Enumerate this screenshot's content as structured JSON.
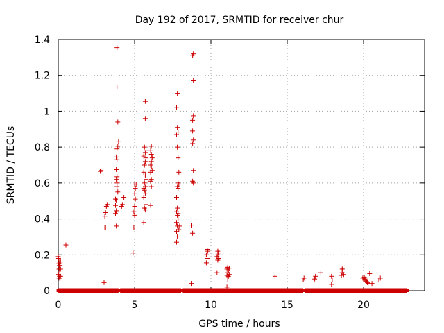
{
  "chart_data": {
    "type": "scatter",
    "title": "Day 192 of 2017, SRMTID for receiver chur",
    "xlabel": "GPS time / hours",
    "ylabel": "SRMTID / TECUs",
    "xlim": [
      0,
      24
    ],
    "ylim": [
      0,
      1.4
    ],
    "xticks": [
      0,
      5,
      10,
      15,
      20
    ],
    "xtick_labels": [
      "0",
      "5",
      "10",
      "15",
      "20"
    ],
    "yticks": [
      0,
      0.2,
      0.4,
      0.6,
      0.8,
      1.0,
      1.2,
      1.4
    ],
    "ytick_labels": [
      "0",
      "0.2",
      "0.4",
      "0.6",
      "0.8",
      "1",
      "1.2",
      "1.4"
    ],
    "grid": true,
    "marker": "+",
    "color": "#cc0000",
    "series": [
      {
        "name": "SRMTID",
        "points": [
          [
            0.0,
            0.19
          ],
          [
            0.02,
            0.18
          ],
          [
            0.05,
            0.16
          ],
          [
            0.03,
            0.15
          ],
          [
            0.07,
            0.14
          ],
          [
            0.1,
            0.15
          ],
          [
            0.12,
            0.14
          ],
          [
            0.15,
            0.16
          ],
          [
            0.05,
            0.12
          ],
          [
            0.1,
            0.11
          ],
          [
            0.15,
            0.12
          ],
          [
            0.02,
            0.09
          ],
          [
            0.08,
            0.08
          ],
          [
            0.12,
            0.07
          ],
          [
            0.05,
            0.07
          ],
          [
            0.15,
            0.08
          ],
          [
            0.5,
            0.255
          ],
          [
            2.75,
            0.665
          ],
          [
            2.8,
            0.67
          ],
          [
            3.0,
            0.045
          ],
          [
            3.05,
            0.35
          ],
          [
            3.1,
            0.35
          ],
          [
            3.05,
            0.415
          ],
          [
            3.1,
            0.435
          ],
          [
            3.15,
            0.47
          ],
          [
            3.2,
            0.48
          ],
          [
            3.75,
            0.475
          ],
          [
            3.8,
            0.445
          ],
          [
            3.75,
            0.43
          ],
          [
            3.8,
            0.36
          ],
          [
            3.75,
            0.51
          ],
          [
            3.8,
            0.505
          ],
          [
            3.85,
            0.6
          ],
          [
            3.8,
            0.62
          ],
          [
            3.85,
            0.635
          ],
          [
            3.8,
            0.675
          ],
          [
            3.85,
            0.73
          ],
          [
            3.8,
            0.745
          ],
          [
            3.85,
            0.79
          ],
          [
            3.9,
            0.805
          ],
          [
            3.95,
            0.83
          ],
          [
            3.9,
            0.94
          ],
          [
            3.85,
            1.135
          ],
          [
            3.85,
            1.355
          ],
          [
            3.85,
            0.58
          ],
          [
            3.9,
            0.55
          ],
          [
            4.15,
            0.47
          ],
          [
            4.2,
            0.48
          ],
          [
            4.3,
            0.52
          ],
          [
            4.9,
            0.21
          ],
          [
            4.95,
            0.35
          ],
          [
            5.0,
            0.42
          ],
          [
            4.95,
            0.44
          ],
          [
            5.0,
            0.47
          ],
          [
            5.05,
            0.51
          ],
          [
            5.0,
            0.54
          ],
          [
            5.05,
            0.57
          ],
          [
            5.0,
            0.59
          ],
          [
            5.1,
            0.59
          ],
          [
            5.6,
            0.38
          ],
          [
            5.65,
            0.46
          ],
          [
            5.7,
            0.45
          ],
          [
            5.75,
            0.48
          ],
          [
            5.6,
            0.52
          ],
          [
            5.7,
            0.54
          ],
          [
            5.65,
            0.56
          ],
          [
            5.6,
            0.57
          ],
          [
            5.7,
            0.58
          ],
          [
            5.65,
            0.6
          ],
          [
            5.75,
            0.62
          ],
          [
            5.7,
            0.64
          ],
          [
            5.6,
            0.66
          ],
          [
            5.65,
            0.7
          ],
          [
            5.7,
            0.72
          ],
          [
            5.75,
            0.74
          ],
          [
            5.6,
            0.75
          ],
          [
            5.7,
            0.77
          ],
          [
            5.75,
            0.78
          ],
          [
            5.65,
            0.8
          ],
          [
            5.7,
            0.96
          ],
          [
            5.7,
            1.055
          ],
          [
            6.05,
            0.475
          ],
          [
            6.1,
            0.58
          ],
          [
            6.05,
            0.61
          ],
          [
            6.1,
            0.62
          ],
          [
            6.05,
            0.66
          ],
          [
            6.15,
            0.67
          ],
          [
            6.1,
            0.69
          ],
          [
            6.05,
            0.7
          ],
          [
            6.1,
            0.72
          ],
          [
            6.15,
            0.74
          ],
          [
            6.1,
            0.76
          ],
          [
            6.05,
            0.78
          ],
          [
            6.1,
            0.805
          ],
          [
            7.75,
            0.27
          ],
          [
            7.8,
            0.3
          ],
          [
            7.75,
            0.33
          ],
          [
            7.85,
            0.35
          ],
          [
            7.8,
            0.36
          ],
          [
            7.75,
            0.38
          ],
          [
            7.85,
            0.4
          ],
          [
            7.8,
            0.42
          ],
          [
            7.75,
            0.44
          ],
          [
            7.85,
            0.43
          ],
          [
            7.8,
            0.46
          ],
          [
            7.75,
            0.52
          ],
          [
            7.85,
            0.57
          ],
          [
            7.8,
            0.58
          ],
          [
            7.9,
            0.59
          ],
          [
            7.85,
            0.6
          ],
          [
            7.9,
            0.66
          ],
          [
            7.85,
            0.74
          ],
          [
            7.8,
            0.8
          ],
          [
            7.75,
            0.87
          ],
          [
            7.8,
            0.91
          ],
          [
            7.85,
            0.88
          ],
          [
            7.75,
            1.02
          ],
          [
            7.8,
            1.1
          ],
          [
            7.95,
            0.36
          ],
          [
            7.9,
            0.34
          ],
          [
            8.75,
            0.04
          ],
          [
            8.8,
            0.32
          ],
          [
            8.75,
            0.365
          ],
          [
            8.85,
            0.6
          ],
          [
            8.8,
            0.61
          ],
          [
            8.85,
            0.67
          ],
          [
            8.8,
            0.82
          ],
          [
            8.85,
            0.84
          ],
          [
            8.8,
            0.89
          ],
          [
            8.8,
            0.95
          ],
          [
            8.85,
            0.975
          ],
          [
            8.85,
            1.17
          ],
          [
            8.8,
            1.31
          ],
          [
            8.85,
            1.32
          ],
          [
            9.7,
            0.155
          ],
          [
            9.75,
            0.18
          ],
          [
            9.7,
            0.2
          ],
          [
            9.8,
            0.22
          ],
          [
            9.75,
            0.23
          ],
          [
            10.4,
            0.1
          ],
          [
            10.45,
            0.17
          ],
          [
            10.5,
            0.18
          ],
          [
            10.4,
            0.19
          ],
          [
            10.45,
            0.2
          ],
          [
            10.5,
            0.21
          ],
          [
            10.45,
            0.22
          ],
          [
            11.05,
            0.02
          ],
          [
            11.1,
            0.06
          ],
          [
            11.15,
            0.08
          ],
          [
            11.05,
            0.085
          ],
          [
            11.2,
            0.09
          ],
          [
            11.1,
            0.1
          ],
          [
            11.15,
            0.11
          ],
          [
            11.05,
            0.12
          ],
          [
            11.2,
            0.125
          ],
          [
            11.1,
            0.13
          ],
          [
            14.2,
            0.08
          ],
          [
            16.05,
            0.06
          ],
          [
            16.1,
            0.07
          ],
          [
            16.8,
            0.065
          ],
          [
            16.85,
            0.08
          ],
          [
            17.2,
            0.1
          ],
          [
            17.9,
            0.035
          ],
          [
            17.95,
            0.06
          ],
          [
            17.9,
            0.08
          ],
          [
            18.55,
            0.085
          ],
          [
            18.6,
            0.1
          ],
          [
            18.65,
            0.11
          ],
          [
            18.6,
            0.12
          ],
          [
            18.65,
            0.125
          ],
          [
            18.7,
            0.09
          ],
          [
            19.95,
            0.07
          ],
          [
            20.0,
            0.06
          ],
          [
            20.1,
            0.065
          ],
          [
            20.15,
            0.055
          ],
          [
            20.2,
            0.05
          ],
          [
            20.25,
            0.045
          ],
          [
            20.3,
            0.04
          ],
          [
            20.05,
            0.075
          ],
          [
            20.4,
            0.095
          ],
          [
            20.55,
            0.04
          ],
          [
            21.0,
            0.06
          ],
          [
            21.1,
            0.07
          ]
        ],
        "zero_baseline": {
          "value": 0,
          "x_ranges": [
            [
              0.05,
              3.9
            ],
            [
              4.1,
              8.0
            ],
            [
              8.2,
              16.0
            ],
            [
              16.2,
              22.8
            ]
          ]
        }
      }
    ]
  }
}
